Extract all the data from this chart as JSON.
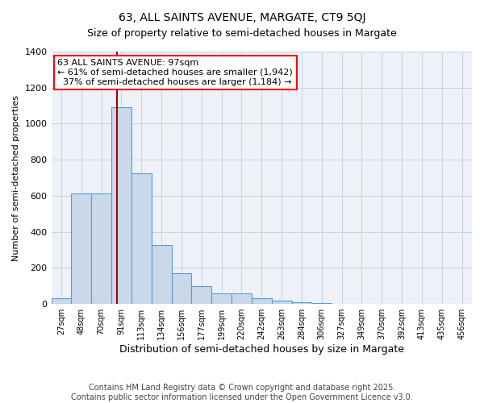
{
  "title": "63, ALL SAINTS AVENUE, MARGATE, CT9 5QJ",
  "subtitle": "Size of property relative to semi-detached houses in Margate",
  "xlabel": "Distribution of semi-detached houses by size in Margate",
  "ylabel": "Number of semi-detached properties",
  "bin_labels": [
    "27sqm",
    "48sqm",
    "70sqm",
    "91sqm",
    "113sqm",
    "134sqm",
    "156sqm",
    "177sqm",
    "199sqm",
    "220sqm",
    "242sqm",
    "263sqm",
    "284sqm",
    "306sqm",
    "327sqm",
    "349sqm",
    "370sqm",
    "392sqm",
    "413sqm",
    "435sqm",
    "456sqm"
  ],
  "bin_edges": [
    27,
    48,
    70,
    91,
    113,
    134,
    156,
    177,
    199,
    220,
    242,
    263,
    284,
    306,
    327,
    349,
    370,
    392,
    413,
    435,
    456
  ],
  "bar_heights": [
    30,
    615,
    615,
    1090,
    725,
    325,
    170,
    100,
    60,
    60,
    30,
    18,
    10,
    5,
    3,
    2,
    1,
    0,
    0,
    0,
    0
  ],
  "bar_color": "#c9d9ea",
  "bar_edge_color": "#5b9bd5",
  "property_size": 97,
  "property_label": "63 ALL SAINTS AVENUE: 97sqm",
  "pct_smaller": 61,
  "n_smaller": 1942,
  "pct_larger": 37,
  "n_larger": 1184,
  "vline_color": "#aa0000",
  "ylim": [
    0,
    1400
  ],
  "yticks": [
    0,
    200,
    400,
    600,
    800,
    1000,
    1200,
    1400
  ],
  "grid_color": "#c5d5e5",
  "background_color": "#eef2f8",
  "footnote1": "Contains HM Land Registry data © Crown copyright and database right 2025.",
  "footnote2": "Contains public sector information licensed under the Open Government Licence v3.0.",
  "title_fontsize": 10,
  "footnote_fontsize": 7
}
